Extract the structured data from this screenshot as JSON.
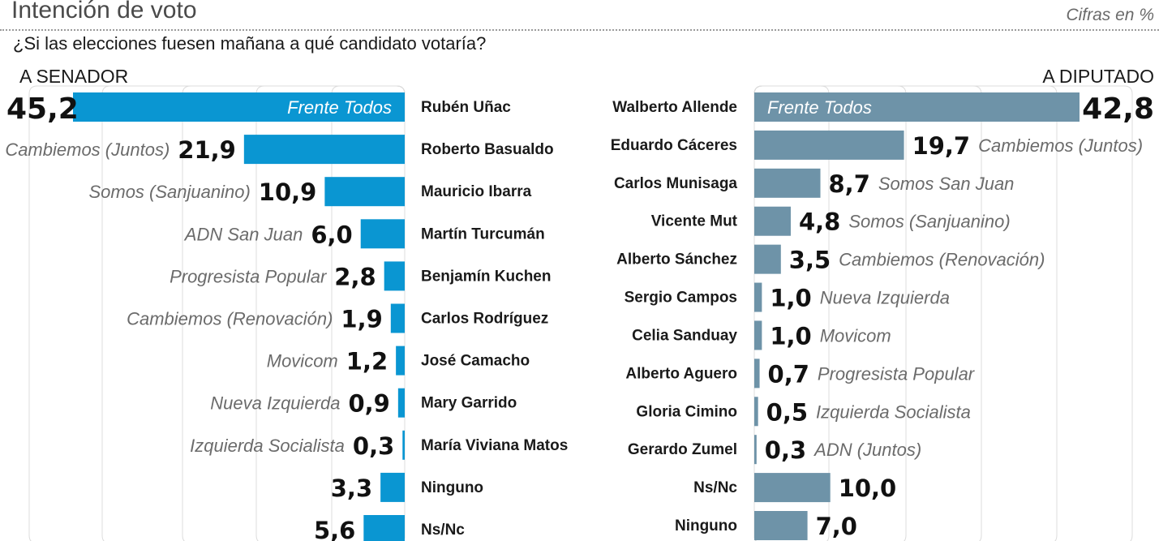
{
  "header": {
    "title": "Intención de voto",
    "unit": "Cifras en %",
    "question": "¿Si las elecciones fuesen mañana a qué candidato votaría?"
  },
  "colors": {
    "senador_bar": "#0a96d2",
    "diputado_bar": "#6e93a8",
    "party_text": "#6b6b6b",
    "grid": "#dcdcdc"
  },
  "chart_data": [
    {
      "type": "bar",
      "orientation": "horizontal",
      "title": "A SENADOR",
      "categories": [
        "Rubén Uñac",
        "Roberto Basualdo",
        "Mauricio Ibarra",
        "Martín Turcumán",
        "Benjamín Kuchen",
        "Carlos Rodríguez",
        "José Camacho",
        "Mary Garrido",
        "María Viviana Matos",
        "Ninguno",
        "Ns/Nc"
      ],
      "parties": [
        "Frente Todos",
        "Cambiemos (Juntos)",
        "Somos (Sanjuanino)",
        "ADN San Juan",
        "Progresista Popular",
        "Cambiemos (Renovación)",
        "Movicom",
        "Nueva Izquierda",
        "Izquierda Socialista",
        "",
        ""
      ],
      "values": [
        45.2,
        21.9,
        10.9,
        6.0,
        2.8,
        1.9,
        1.2,
        0.9,
        0.3,
        3.3,
        5.6
      ],
      "labels": [
        "45,2",
        "21,9",
        "10,9",
        "6,0",
        "2,8",
        "1,9",
        "1,2",
        "0,9",
        "0,3",
        "3,3",
        "5,6"
      ],
      "xlim": [
        0,
        45.2
      ],
      "grid": true
    },
    {
      "type": "bar",
      "orientation": "horizontal",
      "title": "A DIPUTADO",
      "categories": [
        "Walberto Allende",
        "Eduardo Cáceres",
        "Carlos Munisaga",
        "Vicente Mut",
        "Alberto Sánchez",
        "Sergio Campos",
        "Celia Sanduay",
        "Alberto Aguero",
        "Gloria Cimino",
        "Gerardo Zumel",
        "Ns/Nc",
        "Ninguno"
      ],
      "parties": [
        "Frente Todos",
        "Cambiemos (Juntos)",
        "Somos San Juan",
        "Somos (Sanjuanino)",
        "Cambiemos (Renovación)",
        "Nueva Izquierda",
        "Movicom",
        "Progresista Popular",
        "Izquierda Socialista",
        "ADN (Juntos)",
        "",
        ""
      ],
      "values": [
        42.8,
        19.7,
        8.7,
        4.8,
        3.5,
        1.0,
        1.0,
        0.7,
        0.5,
        0.3,
        10.0,
        7.0
      ],
      "labels": [
        "42,8",
        "19,7",
        "8,7",
        "4,8",
        "3,5",
        "1,0",
        "1,0",
        "0,7",
        "0,5",
        "0,3",
        "10,0",
        "7,0"
      ],
      "xlim": [
        0,
        42.8
      ],
      "grid": true
    }
  ]
}
